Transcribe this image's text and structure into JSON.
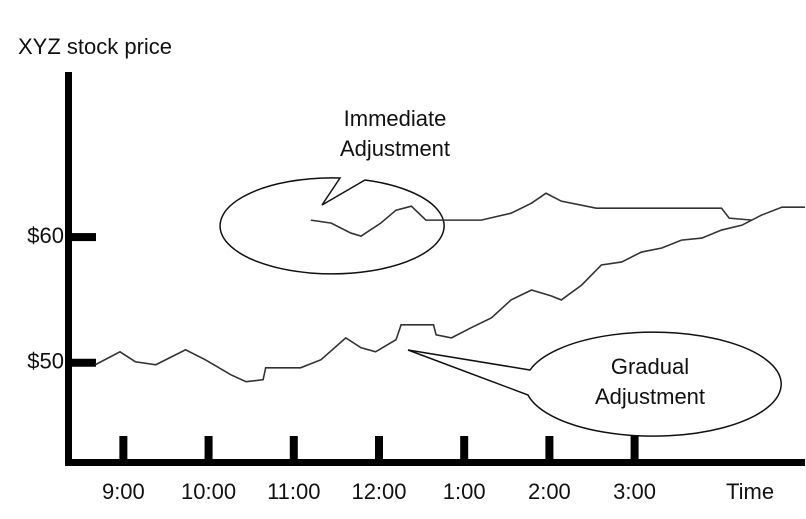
{
  "chart_data": {
    "type": "line",
    "ylabel": "XYZ stock price",
    "xlabel": "Time",
    "xlim": [
      8.35,
      17.0
    ],
    "ylim": [
      42.1,
      72.9
    ],
    "xticks": [
      {
        "value": 9,
        "label": "9:00"
      },
      {
        "value": 10,
        "label": "10:00"
      },
      {
        "value": 11,
        "label": "11:00"
      },
      {
        "value": 12,
        "label": "12:00"
      },
      {
        "value": 13,
        "label": "1:00"
      },
      {
        "value": 14,
        "label": "2:00"
      },
      {
        "value": 15,
        "label": "3:00"
      }
    ],
    "yticks": [
      {
        "value": 50,
        "label": "$50"
      },
      {
        "value": 60,
        "label": "$60"
      }
    ],
    "series": [
      {
        "label": [
          "Immediate",
          "Adjustment"
        ],
        "color": "#333333",
        "x": [
          11.2,
          11.44,
          11.67,
          11.79,
          12.02,
          12.2,
          12.38,
          12.55,
          13.2,
          13.55,
          13.79,
          13.96,
          14.14,
          14.55,
          16.02,
          16.11,
          16.38
        ],
        "values": [
          61.35,
          61.11,
          60.32,
          60.08,
          61.11,
          62.14,
          62.46,
          61.35,
          61.35,
          61.9,
          62.7,
          63.49,
          62.86,
          62.3,
          62.3,
          61.51,
          61.35
        ]
      },
      {
        "label": [
          "Gradual",
          "Adjustment"
        ],
        "color": "#333333",
        "x": [
          8.67,
          8.96,
          9.14,
          9.38,
          9.73,
          9.96,
          10.26,
          10.44,
          10.64,
          10.67,
          11.08,
          11.32,
          11.61,
          11.79,
          11.96,
          12.2,
          12.26,
          12.64,
          12.67,
          12.85,
          13.08,
          13.32,
          13.55,
          13.79,
          14.02,
          14.14,
          14.38,
          14.61,
          14.85,
          15.08,
          15.32,
          15.55,
          15.79,
          16.02,
          16.26,
          16.49,
          16.73,
          17.0
        ],
        "values": [
          49.84,
          50.87,
          50.08,
          49.84,
          51.03,
          50.24,
          49.05,
          48.49,
          48.65,
          49.6,
          49.6,
          50.24,
          51.98,
          51.19,
          50.87,
          51.83,
          53.02,
          53.02,
          52.22,
          51.98,
          52.78,
          53.57,
          55.0,
          55.79,
          55.32,
          55.0,
          56.19,
          57.78,
          58.02,
          58.81,
          59.13,
          59.76,
          59.92,
          60.56,
          60.95,
          61.75,
          62.38,
          62.38
        ]
      }
    ]
  }
}
